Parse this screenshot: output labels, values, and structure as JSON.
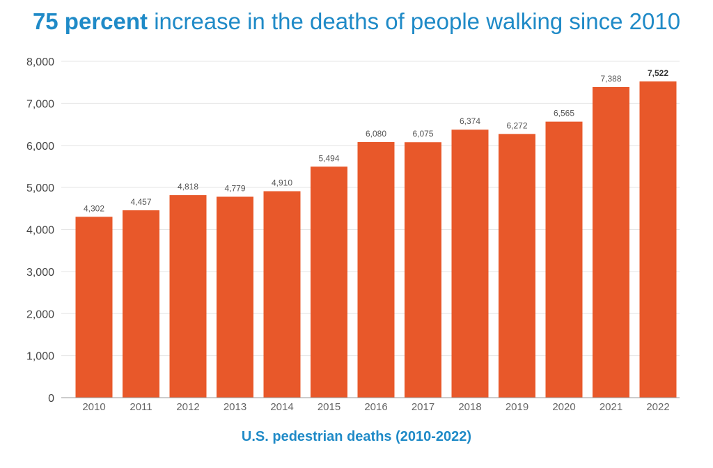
{
  "title": {
    "bold": "75 percent",
    "rest": " increase in the deaths of people walking since 2010"
  },
  "colors": {
    "title": "#1f8ac7",
    "bar": "#e8582a",
    "grid": "#e6e6e6"
  },
  "chart_data": {
    "type": "bar",
    "title": "75 percent increase in the deaths of people walking since 2010",
    "xlabel": "U.S. pedestrian deaths (2010-2022)",
    "ylabel": "",
    "categories": [
      "2010",
      "2011",
      "2012",
      "2013",
      "2014",
      "2015",
      "2016",
      "2017",
      "2018",
      "2019",
      "2020",
      "2021",
      "2022"
    ],
    "values": [
      4302,
      4457,
      4818,
      4779,
      4910,
      5494,
      6080,
      6075,
      6374,
      6272,
      6565,
      7388,
      7522
    ],
    "value_labels": [
      "4,302",
      "4,457",
      "4,818",
      "4,779",
      "4,910",
      "5,494",
      "6,080",
      "6,075",
      "6,374",
      "6,272",
      "6,565",
      "7,388",
      "7,522"
    ],
    "yticks": [
      0,
      1000,
      2000,
      3000,
      4000,
      5000,
      6000,
      7000,
      8000
    ],
    "ytick_labels": [
      "0",
      "1,000",
      "2,000",
      "3,000",
      "4,000",
      "5,000",
      "6,000",
      "7,000",
      "8,000"
    ],
    "ylim": [
      0,
      8000
    ],
    "grid": true
  }
}
